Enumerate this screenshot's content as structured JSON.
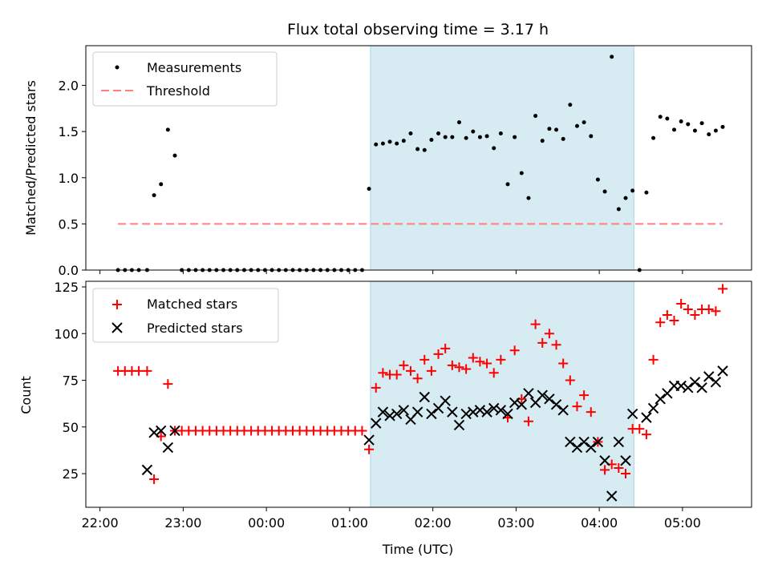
{
  "chart_data": [
    {
      "type": "scatter",
      "title": "Flux total observing time = 3.17 h",
      "xlabel": "",
      "ylabel": "Matched/Predicted stars",
      "xlim": [
        21.83,
        5.83
      ],
      "ylim": [
        0,
        2.43
      ],
      "yticks": [
        0.0,
        0.5,
        1.0,
        1.5,
        2.0
      ],
      "ytick_labels": [
        "0.0",
        "0.5",
        "1.0",
        "1.5",
        "2.0"
      ],
      "shaded_span": {
        "start": "01:15",
        "end": "04:25"
      },
      "legend": {
        "position": "top-left",
        "entries": [
          "Measurements",
          "Threshold"
        ]
      },
      "series": [
        {
          "name": "Measurements",
          "marker": "dot",
          "color": "#000000",
          "x": [
            "22:13",
            "22:18",
            "22:23",
            "22:28",
            "22:34",
            "22:39",
            "22:44",
            "22:49",
            "22:54",
            "22:59",
            "23:04",
            "23:09",
            "23:14",
            "23:19",
            "23:24",
            "23:29",
            "23:34",
            "23:39",
            "23:44",
            "23:49",
            "23:54",
            "23:59",
            "00:04",
            "00:09",
            "00:14",
            "00:19",
            "00:24",
            "00:29",
            "00:34",
            "00:39",
            "00:44",
            "00:49",
            "00:54",
            "00:59",
            "01:04",
            "01:09",
            "01:14",
            "01:19",
            "01:24",
            "01:29",
            "01:34",
            "01:39",
            "01:44",
            "01:49",
            "01:54",
            "01:59",
            "02:04",
            "02:09",
            "02:14",
            "02:19",
            "02:24",
            "02:29",
            "02:34",
            "02:39",
            "02:44",
            "02:49",
            "02:54",
            "02:59",
            "03:04",
            "03:09",
            "03:14",
            "03:19",
            "03:24",
            "03:29",
            "03:34",
            "03:39",
            "03:44",
            "03:49",
            "03:54",
            "03:59",
            "04:04",
            "04:09",
            "04:14",
            "04:19",
            "04:24",
            "04:29",
            "04:34",
            "04:39",
            "04:44",
            "04:49",
            "04:54",
            "04:59",
            "05:04",
            "05:09",
            "05:14",
            "05:19",
            "05:24",
            "05:29"
          ],
          "y": [
            0,
            0,
            0,
            0,
            0,
            0.81,
            0.93,
            1.52,
            1.24,
            0,
            0,
            0,
            0,
            0,
            0,
            0,
            0,
            0,
            0,
            0,
            0,
            0,
            0,
            0,
            0,
            0,
            0,
            0,
            0,
            0,
            0,
            0,
            0,
            0,
            0,
            0,
            0.88,
            1.36,
            1.37,
            1.39,
            1.37,
            1.4,
            1.48,
            1.31,
            1.3,
            1.41,
            1.48,
            1.44,
            1.44,
            1.6,
            1.43,
            1.5,
            1.44,
            1.45,
            1.32,
            1.48,
            0.93,
            1.44,
            1.05,
            0.78,
            1.67,
            1.4,
            1.53,
            1.52,
            1.42,
            1.79,
            1.56,
            1.6,
            1.45,
            0.98,
            0.85,
            2.31,
            0.66,
            0.78,
            0.86,
            0,
            0.84,
            1.43,
            1.66,
            1.64,
            1.52,
            1.61,
            1.58,
            1.51,
            1.59,
            1.47,
            1.51,
            1.55
          ]
        },
        {
          "name": "Threshold",
          "style": "dashed",
          "color": "#ff7f7f",
          "x": [
            "22:13",
            "05:29"
          ],
          "y": [
            0.5,
            0.5
          ]
        }
      ]
    },
    {
      "type": "scatter",
      "title": "",
      "xlabel": "Time (UTC)",
      "ylabel": "Count",
      "xlim": [
        21.83,
        5.83
      ],
      "ylim": [
        7,
        128
      ],
      "xticks": [
        "22:00",
        "23:00",
        "00:00",
        "01:00",
        "02:00",
        "03:00",
        "04:00",
        "05:00"
      ],
      "yticks": [
        25,
        50,
        75,
        100,
        125
      ],
      "ytick_labels": [
        "25",
        "50",
        "75",
        "100",
        "125"
      ],
      "shaded_span": {
        "start": "01:15",
        "end": "04:25"
      },
      "legend": {
        "position": "top-left",
        "entries": [
          "Matched stars",
          "Predicted stars"
        ]
      },
      "series": [
        {
          "name": "Matched stars",
          "marker": "plus",
          "color": "#ff0000",
          "x": [
            "22:13",
            "22:18",
            "22:23",
            "22:28",
            "22:34",
            "22:39",
            "22:44",
            "22:49",
            "22:54",
            "22:59",
            "23:04",
            "23:09",
            "23:14",
            "23:19",
            "23:24",
            "23:29",
            "23:34",
            "23:39",
            "23:44",
            "23:49",
            "23:54",
            "23:59",
            "00:04",
            "00:09",
            "00:14",
            "00:19",
            "00:24",
            "00:29",
            "00:34",
            "00:39",
            "00:44",
            "00:49",
            "00:54",
            "00:59",
            "01:04",
            "01:09",
            "01:14",
            "01:19",
            "01:24",
            "01:29",
            "01:34",
            "01:39",
            "01:44",
            "01:49",
            "01:54",
            "01:59",
            "02:04",
            "02:09",
            "02:14",
            "02:19",
            "02:24",
            "02:29",
            "02:34",
            "02:39",
            "02:44",
            "02:49",
            "02:54",
            "02:59",
            "03:04",
            "03:09",
            "03:14",
            "03:19",
            "03:24",
            "03:29",
            "03:34",
            "03:39",
            "03:44",
            "03:49",
            "03:54",
            "03:59",
            "04:04",
            "04:09",
            "04:14",
            "04:19",
            "04:24",
            "04:29",
            "04:34",
            "04:39",
            "04:44",
            "04:49",
            "04:54",
            "04:59",
            "05:04",
            "05:09",
            "05:14",
            "05:19",
            "05:24",
            "05:29"
          ],
          "y": [
            80,
            80,
            80,
            80,
            80,
            22,
            45,
            73,
            48,
            48,
            48,
            48,
            48,
            48,
            48,
            48,
            48,
            48,
            48,
            48,
            48,
            48,
            48,
            48,
            48,
            48,
            48,
            48,
            48,
            48,
            48,
            48,
            48,
            48,
            48,
            48,
            38,
            71,
            79,
            78,
            78,
            83,
            80,
            76,
            86,
            80,
            89,
            92,
            83,
            82,
            81,
            87,
            85,
            84,
            79,
            86,
            55,
            91,
            65,
            53,
            105,
            95,
            100,
            94,
            84,
            75,
            61,
            67,
            58,
            42,
            27,
            30,
            28,
            25,
            49,
            49,
            46,
            86,
            106,
            110,
            107,
            116,
            113,
            110,
            113,
            113,
            112,
            124
          ]
        },
        {
          "name": "Predicted stars",
          "marker": "x",
          "color": "#000000",
          "x": [
            "22:34",
            "22:39",
            "22:44",
            "22:49",
            "22:54",
            "01:14",
            "01:19",
            "01:24",
            "01:29",
            "01:34",
            "01:39",
            "01:44",
            "01:49",
            "01:54",
            "01:59",
            "02:04",
            "02:09",
            "02:14",
            "02:19",
            "02:24",
            "02:29",
            "02:34",
            "02:39",
            "02:44",
            "02:49",
            "02:54",
            "02:59",
            "03:04",
            "03:09",
            "03:14",
            "03:19",
            "03:24",
            "03:29",
            "03:34",
            "03:39",
            "03:44",
            "03:49",
            "03:54",
            "03:59",
            "04:04",
            "04:09",
            "04:14",
            "04:19",
            "04:24",
            "04:34",
            "04:39",
            "04:44",
            "04:49",
            "04:54",
            "04:59",
            "05:04",
            "05:09",
            "05:14",
            "05:19",
            "05:24",
            "05:29"
          ],
          "y": [
            27,
            47,
            48,
            39,
            48,
            43,
            52,
            58,
            56,
            57,
            59,
            54,
            58,
            66,
            57,
            60,
            64,
            58,
            51,
            57,
            58,
            59,
            58,
            60,
            59,
            57,
            63,
            62,
            68,
            63,
            67,
            65,
            62,
            59,
            42,
            39,
            42,
            39,
            42,
            32,
            13,
            42,
            32,
            57,
            55,
            60,
            65,
            68,
            72,
            72,
            71,
            74,
            71,
            77,
            74,
            80
          ]
        }
      ]
    }
  ]
}
